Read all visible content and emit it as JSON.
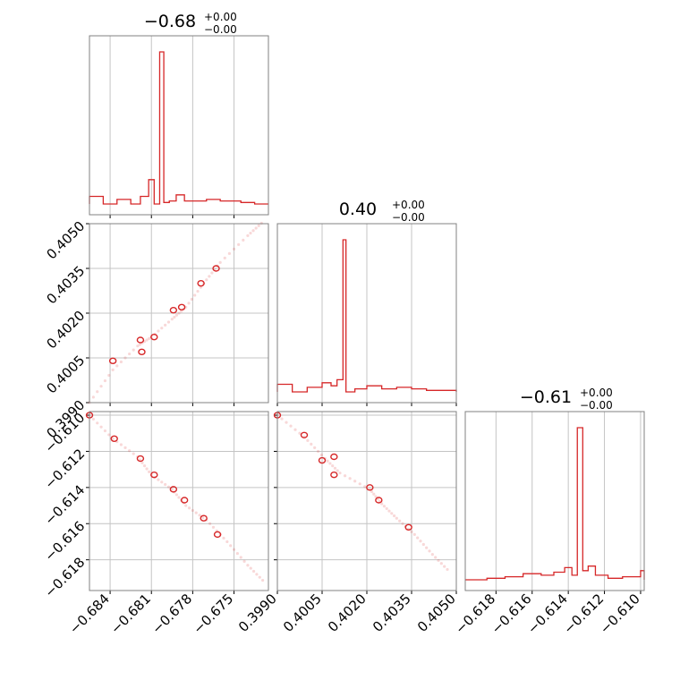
{
  "chart_data": {
    "type": "corner",
    "color": "#d62728",
    "params": [
      {
        "title_value": "−0.68",
        "title_upper": "+0.00",
        "title_lower": "−0.00",
        "range": [
          -0.6855,
          -0.6725
        ],
        "ticks": [
          -0.684,
          -0.681,
          -0.678,
          -0.675
        ],
        "tick_labels": [
          "−0.684",
          "−0.681",
          "−0.678",
          "−0.675"
        ]
      },
      {
        "title_value": "0.40",
        "title_upper": "+0.00",
        "title_lower": "−0.00",
        "range": [
          0.399,
          0.405
        ],
        "ticks": [
          0.399,
          0.4005,
          0.402,
          0.4035,
          0.405
        ],
        "tick_labels": [
          "0.3990",
          "0.4005",
          "0.4020",
          "0.4035",
          "0.4050"
        ]
      },
      {
        "title_value": "−0.61",
        "title_upper": "+0.00",
        "title_lower": "−0.00",
        "range": [
          -0.6197,
          -0.6098
        ],
        "ticks": [
          -0.618,
          -0.616,
          -0.614,
          -0.612,
          -0.61
        ],
        "tick_labels": [
          "−0.618",
          "−0.616",
          "−0.614",
          "−0.612",
          "−0.610"
        ]
      }
    ],
    "histograms": [
      {
        "bins": [
          -0.6855,
          -0.6845,
          -0.6835,
          -0.6825,
          -0.6818,
          -0.6812,
          -0.6808,
          -0.6804,
          -0.6801,
          -0.6797,
          -0.6792,
          -0.6786,
          -0.678,
          -0.677,
          -0.676,
          -0.6745,
          -0.6735,
          -0.6725
        ],
        "counts": [
          0.05,
          0.0,
          0.03,
          0.0,
          0.05,
          0.16,
          0.0,
          1.0,
          0.01,
          0.02,
          0.06,
          0.02,
          0.02,
          0.03,
          0.02,
          0.01,
          0.0
        ]
      },
      {
        "bins": [
          0.399,
          0.3995,
          0.4,
          0.4005,
          0.4008,
          0.401,
          0.4012,
          0.4013,
          0.4016,
          0.402,
          0.4025,
          0.403,
          0.4035,
          0.404,
          0.405
        ],
        "counts": [
          0.05,
          0.0,
          0.03,
          0.06,
          0.04,
          0.08,
          1.0,
          0.0,
          0.02,
          0.04,
          0.02,
          0.03,
          0.02,
          0.01
        ]
      },
      {
        "bins": [
          -0.6197,
          -0.6185,
          -0.6175,
          -0.6165,
          -0.6155,
          -0.6148,
          -0.6142,
          -0.6138,
          -0.6135,
          -0.6132,
          -0.6129,
          -0.6125,
          -0.6118,
          -0.611,
          -0.61,
          -0.6098
        ],
        "counts": [
          0.0,
          0.01,
          0.02,
          0.04,
          0.03,
          0.05,
          0.08,
          0.03,
          1.0,
          0.06,
          0.09,
          0.03,
          0.01,
          0.02,
          0.06
        ]
      }
    ],
    "pairs": [
      {
        "row": 1,
        "col": 0,
        "samples": [
          [
            -0.6855,
            0.399
          ],
          [
            -0.6838,
            0.4001
          ],
          [
            -0.682,
            0.4009
          ],
          [
            -0.681,
            0.4012
          ],
          [
            -0.6795,
            0.4018
          ],
          [
            -0.6785,
            0.4022
          ],
          [
            -0.6772,
            0.403
          ],
          [
            -0.676,
            0.4037
          ],
          [
            -0.674,
            0.4046
          ],
          [
            -0.6728,
            0.4051
          ]
        ],
        "contours": [
          [
            -0.6818,
            0.4011
          ],
          [
            -0.6817,
            0.4007
          ],
          [
            -0.6808,
            0.4012
          ],
          [
            -0.6794,
            0.4021
          ],
          [
            -0.6788,
            0.4022
          ],
          [
            -0.6774,
            0.403
          ],
          [
            -0.6763,
            0.4035
          ],
          [
            -0.6838,
            0.4004
          ]
        ]
      },
      {
        "row": 2,
        "col": 0,
        "samples": [
          [
            -0.6855,
            -0.61
          ],
          [
            -0.6838,
            -0.6113
          ],
          [
            -0.682,
            -0.6123
          ],
          [
            -0.681,
            -0.6133
          ],
          [
            -0.6795,
            -0.6141
          ],
          [
            -0.6785,
            -0.615
          ],
          [
            -0.677,
            -0.6158
          ],
          [
            -0.6755,
            -0.617
          ],
          [
            -0.674,
            -0.6183
          ],
          [
            -0.6727,
            -0.6193
          ]
        ],
        "contours": [
          [
            -0.6855,
            -0.61
          ],
          [
            -0.6837,
            -0.6113
          ],
          [
            -0.6818,
            -0.6124
          ],
          [
            -0.6808,
            -0.6133
          ],
          [
            -0.6794,
            -0.6141
          ],
          [
            -0.6786,
            -0.6147
          ],
          [
            -0.6772,
            -0.6157
          ],
          [
            -0.6762,
            -0.6166
          ]
        ]
      },
      {
        "row": 2,
        "col": 1,
        "samples": [
          [
            0.399,
            -0.61
          ],
          [
            0.3999,
            -0.6112
          ],
          [
            0.4006,
            -0.6124
          ],
          [
            0.4011,
            -0.6132
          ],
          [
            0.4021,
            -0.6141
          ],
          [
            0.4025,
            -0.6149
          ],
          [
            0.403,
            -0.6157
          ],
          [
            0.4036,
            -0.6166
          ],
          [
            0.4042,
            -0.6177
          ],
          [
            0.4048,
            -0.6187
          ]
        ],
        "contours": [
          [
            0.399,
            -0.61
          ],
          [
            0.3999,
            -0.6111
          ],
          [
            0.4005,
            -0.6125
          ],
          [
            0.4009,
            -0.6123
          ],
          [
            0.4009,
            -0.6133
          ],
          [
            0.4021,
            -0.614
          ],
          [
            0.4024,
            -0.6147
          ],
          [
            0.4034,
            -0.6162
          ]
        ]
      }
    ]
  }
}
